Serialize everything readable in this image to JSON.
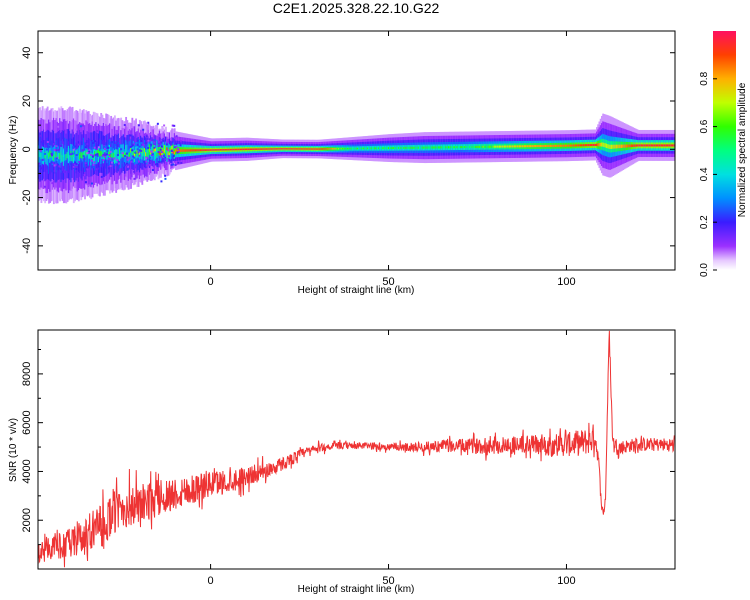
{
  "title": "C2E1.2025.328.22.10.G22",
  "chart_data": [
    {
      "type": "heatmap",
      "xlabel": "Height of straight line (km)",
      "ylabel": "Frequency (Hz)",
      "xlim": [
        -48.5,
        130.5
      ],
      "ylim": [
        -50,
        49
      ],
      "x_ticks": [
        0,
        50,
        100
      ],
      "x_tick_labels": [
        "0",
        "50",
        "100"
      ],
      "y_ticks": [
        -40,
        -20,
        0,
        20,
        40
      ],
      "y_tick_labels": [
        "-40",
        "-20",
        "0",
        "20",
        "40"
      ],
      "colorbar": {
        "label": "Normalized spectral amplitude",
        "range": [
          0,
          1
        ],
        "ticks": [
          0.0,
          0.2,
          0.4,
          0.6,
          0.8
        ],
        "tick_labels": [
          "0.0",
          "0.2",
          "0.4",
          "0.6",
          "0.8"
        ],
        "colormap": "rainbow (violet low, red high)"
      },
      "ridge": {
        "x": [
          -48,
          -40,
          -30,
          -20,
          -10,
          0,
          10,
          20,
          30,
          40,
          50,
          60,
          70,
          80,
          90,
          100,
          108,
          110,
          112,
          120,
          130
        ],
        "peak_frequency": [
          -2.5,
          -2.6,
          -2.2,
          -1.5,
          -0.6,
          -0.3,
          0.0,
          0.2,
          0.1,
          0.3,
          0.5,
          0.7,
          0.9,
          1.1,
          1.3,
          1.5,
          1.8,
          2.0,
          1.0,
          1.6,
          1.6
        ],
        "spread_hz": [
          6,
          6,
          5,
          4,
          2.5,
          1.5,
          1.5,
          1.2,
          1.2,
          1.5,
          1.8,
          2,
          2,
          2,
          2,
          2,
          2,
          4,
          4,
          2,
          2
        ],
        "peak_amplitude": [
          0.45,
          0.45,
          0.5,
          0.6,
          0.85,
          0.95,
          0.95,
          0.95,
          0.95,
          0.6,
          0.6,
          0.6,
          0.6,
          0.7,
          0.8,
          0.85,
          0.95,
          0.7,
          0.7,
          0.95,
          0.95
        ]
      }
    },
    {
      "type": "line",
      "xlabel": "Height of straight line (km)",
      "ylabel": "SNR (10 * v/v)",
      "xlim": [
        -48.5,
        130.5
      ],
      "ylim": [
        0,
        9800
      ],
      "x_ticks": [
        0,
        50,
        100
      ],
      "x_tick_labels": [
        "0",
        "50",
        "100"
      ],
      "y_ticks": [
        2000,
        4000,
        6000,
        8000
      ],
      "y_tick_labels": [
        "2000",
        "4000",
        "6000",
        "8000"
      ],
      "line_color": "#ee3333",
      "series": [
        {
          "x": [
            -48,
            -45,
            -40,
            -35,
            -30,
            -25,
            -20,
            -15,
            -10,
            -5,
            0,
            5,
            10,
            15,
            20,
            25,
            30,
            35,
            40,
            45,
            50,
            55,
            60,
            65,
            70,
            75,
            80,
            85,
            90,
            95,
            100,
            105,
            107,
            108,
            109,
            110,
            110.5,
            111,
            111.5,
            112,
            113,
            115,
            120,
            125,
            130
          ],
          "y": [
            700,
            900,
            1000,
            1300,
            1900,
            2500,
            2600,
            2900,
            3100,
            3300,
            3500,
            3600,
            3800,
            4000,
            4300,
            4700,
            4950,
            5050,
            5050,
            5050,
            5000,
            5000,
            5000,
            5050,
            5050,
            5050,
            5050,
            5100,
            5100,
            5100,
            5100,
            5200,
            5300,
            5500,
            4500,
            2400,
            2300,
            3000,
            6500,
            9700,
            5200,
            5000,
            5100,
            5100,
            5100
          ],
          "noise": [
            600,
            600,
            900,
            1100,
            1200,
            1300,
            1200,
            1100,
            1000,
            900,
            800,
            700,
            600,
            500,
            400,
            300,
            250,
            200,
            200,
            200,
            200,
            250,
            300,
            350,
            400,
            450,
            500,
            550,
            600,
            650,
            700,
            800,
            800,
            800,
            400,
            200,
            200,
            300,
            400,
            300,
            400,
            400,
            400,
            400,
            400
          ]
        }
      ]
    }
  ]
}
